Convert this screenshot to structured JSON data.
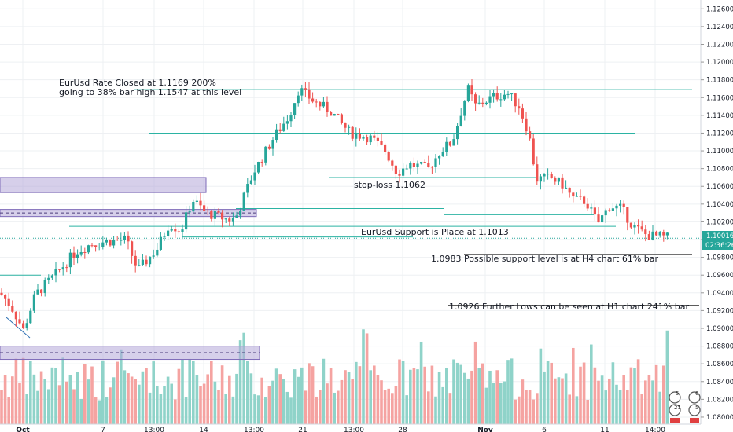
{
  "chart_data": {
    "type": "candlestick",
    "symbol": "EURUSD",
    "ylim": [
      1.0792,
      1.127
    ],
    "y_ticks": [
      "1.12600",
      "1.12400",
      "1.12200",
      "1.12000",
      "1.11800",
      "1.11600",
      "1.11400",
      "1.11200",
      "1.11000",
      "1.10800",
      "1.10600",
      "1.10400",
      "1.10200",
      "1.10000",
      "1.09800",
      "1.09600",
      "1.09400",
      "1.09200",
      "1.09000",
      "1.08800",
      "1.08600",
      "1.08400",
      "1.08200",
      "1.08000"
    ],
    "x_ticks": [
      "Oct",
      "7",
      "13:00",
      "14",
      "13:00",
      "21",
      "13:00",
      "28",
      "Nov",
      "6",
      "11",
      "14:00"
    ],
    "current_price": "1.10016",
    "countdown": "02:36:26",
    "colors": {
      "up": "#26a69a",
      "down": "#ef5350",
      "vol_up": "#8fd3c9",
      "vol_down": "#f5a3a1",
      "line": "#2bb3a3",
      "zone_fill": "#b5a8d8",
      "zone_border": "#7e6bb8",
      "current": "#26a69a",
      "grid": "#eef0f3"
    },
    "support_resistance_lines": [
      1.1169,
      1.112,
      1.107,
      1.1035,
      1.1028,
      1.1015,
      1.1003,
      1.0983,
      1.0926,
      1.096
    ],
    "zones": [
      {
        "low": 1.1053,
        "high": 1.107
      },
      {
        "low": 1.1026,
        "high": 1.1034
      },
      {
        "low": 1.0865,
        "high": 1.088
      }
    ],
    "annotations": [
      "EurUsd Rate Closed at 1.1169 200%",
      "going to 38% bar high 1.1547 at this level",
      "stop-loss 1.1062",
      "EurUsd Support is Place at 1.1013",
      "1.0983 Possible support level is at H4 chart 61% bar",
      "1.0926 Further Lows can be seen at H1 chart 241% bar"
    ],
    "badges": [
      "5",
      "6",
      "21",
      "5"
    ]
  }
}
